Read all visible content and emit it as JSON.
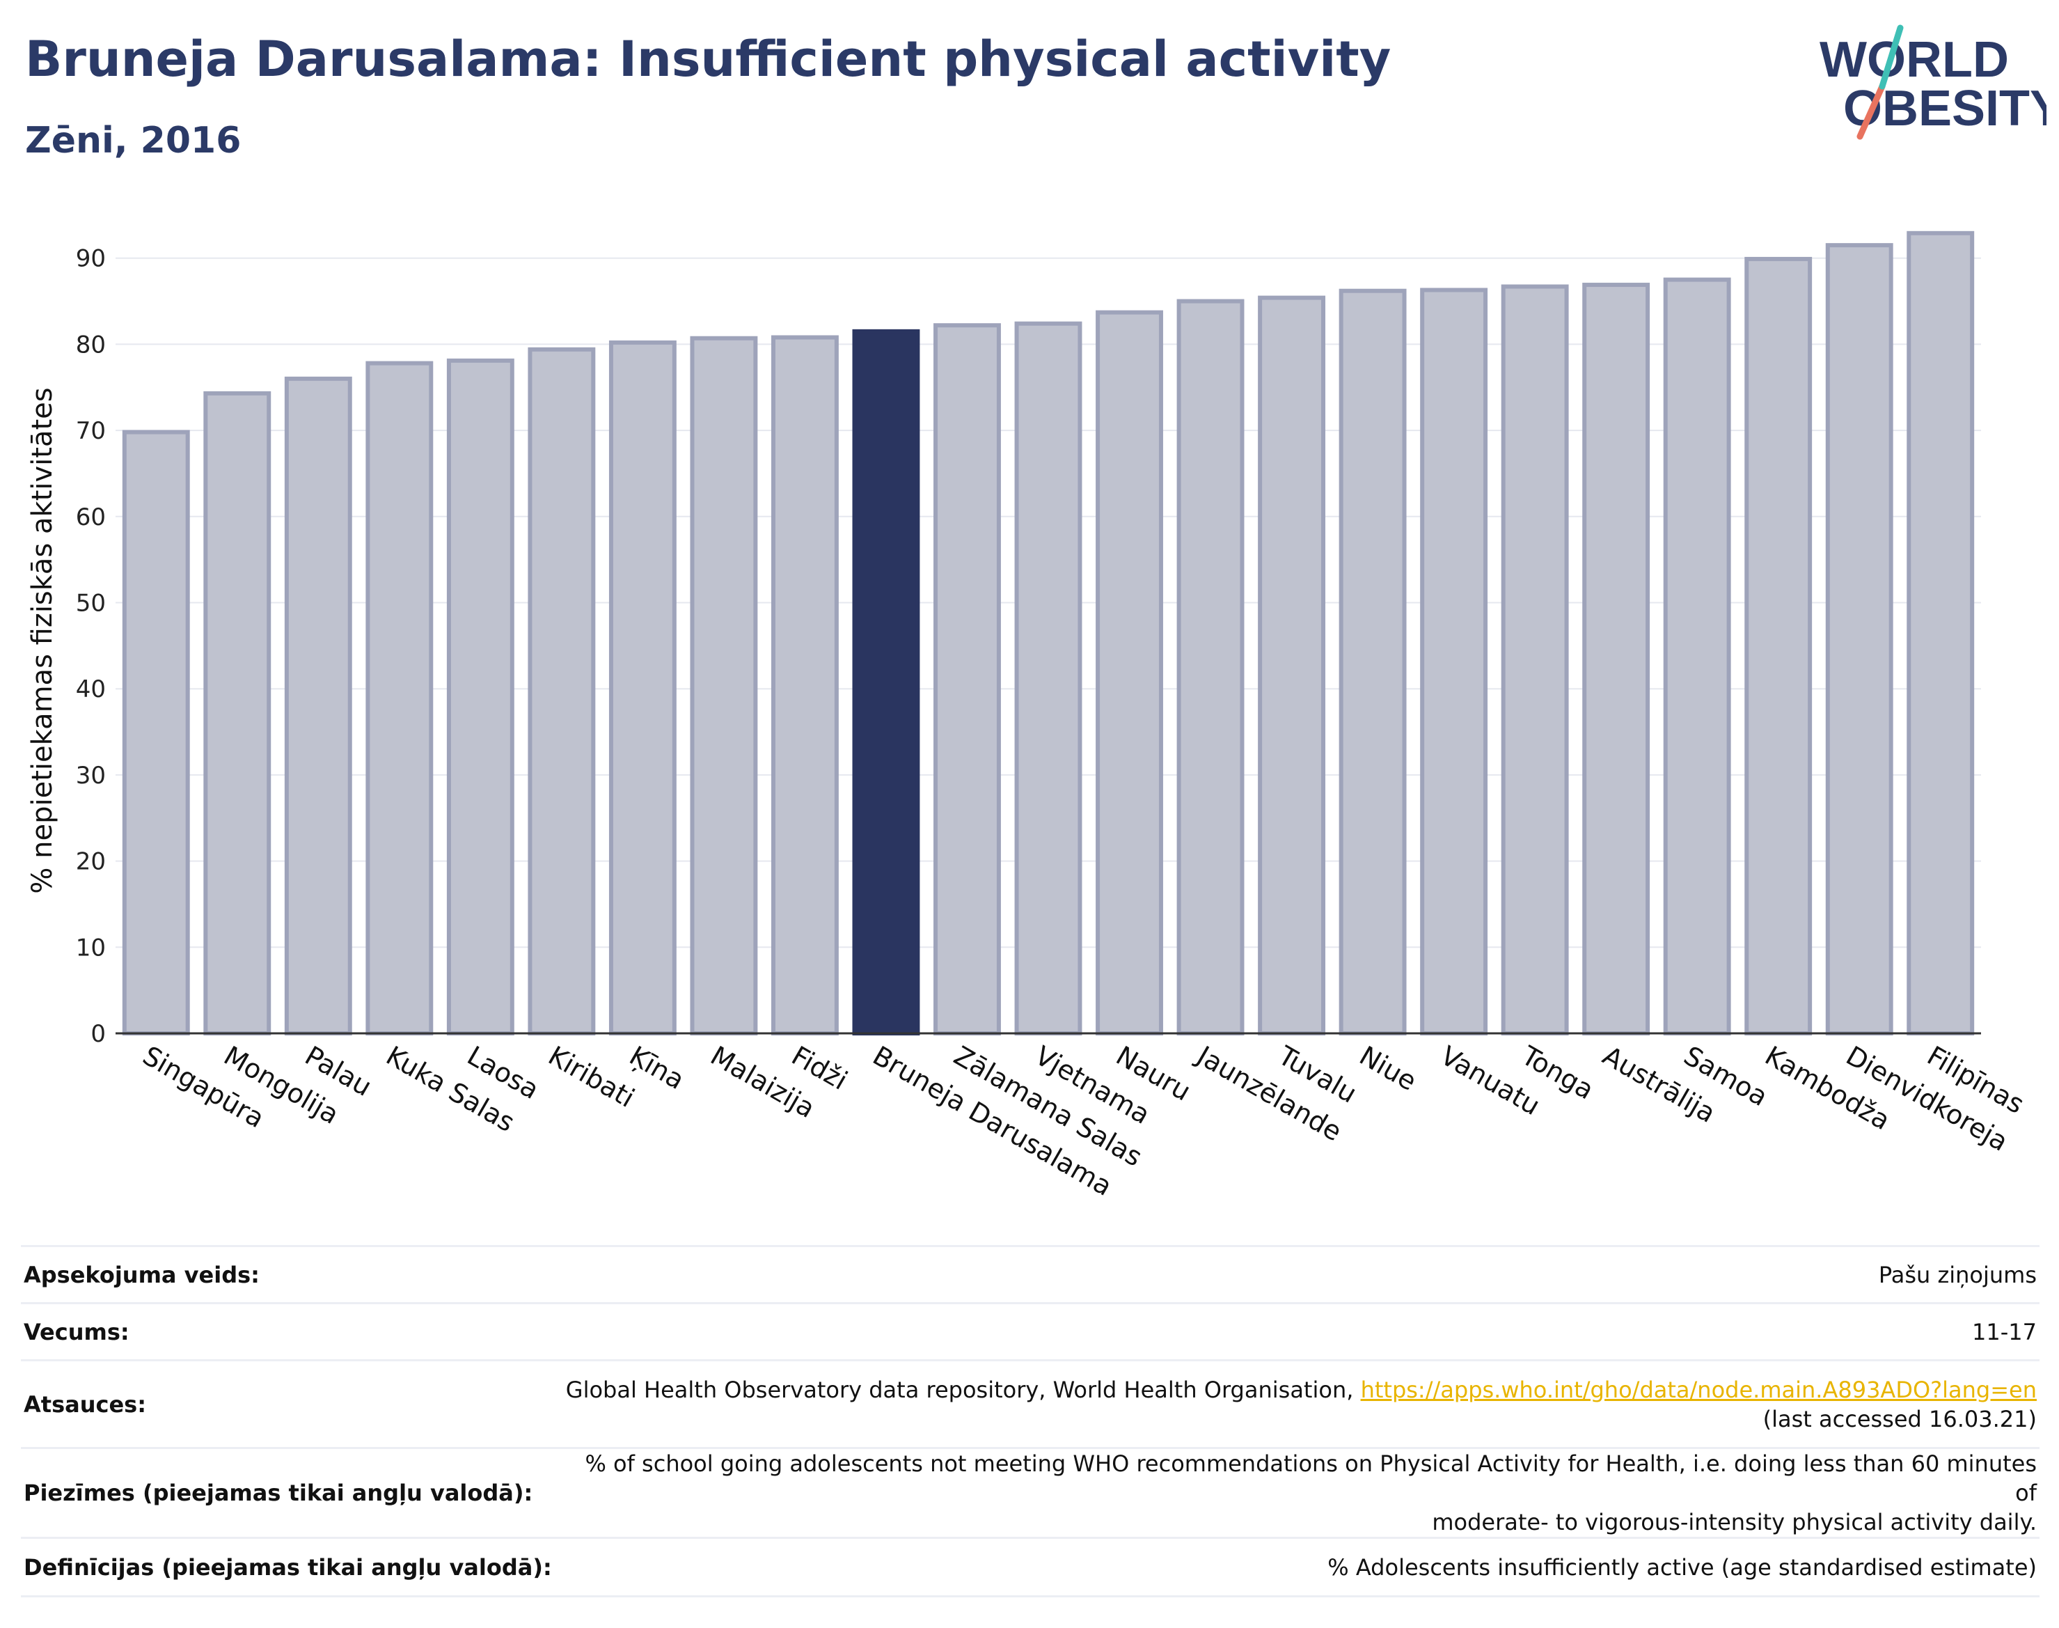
{
  "header": {
    "title": "Bruneja Darusalama: Insufficient physical activity",
    "subtitle": "Zēni, 2016"
  },
  "logo": {
    "line1": "WORLD",
    "line2": "OBESITY"
  },
  "colors": {
    "bar": "#bfc2cf",
    "bar_border": "#9ea3ba",
    "highlight": "#2a3560",
    "title": "#2b3a67",
    "link": "#e8b400"
  },
  "chart_data": {
    "type": "bar",
    "title": "",
    "xlabel": "",
    "ylabel": "% nepietiekamas fiziskās aktivitātes",
    "ylim": [
      0,
      95
    ],
    "yticks": [
      0,
      10,
      20,
      30,
      40,
      50,
      60,
      70,
      80,
      90
    ],
    "grid": true,
    "highlight": "Bruneja Darusalama",
    "categories": [
      "Singapūra",
      "Mongolija",
      "Palau",
      "Kuka Salas",
      "Laosa",
      "Kiribati",
      "Ķīna",
      "Malaizija",
      "Fidži",
      "Bruneja Darusalama",
      "Zālamana Salas",
      "Vjetnama",
      "Nauru",
      "Jaunzēlande",
      "Tuvalu",
      "Niue",
      "Vanuatu",
      "Tonga",
      "Austrālija",
      "Samoa",
      "Kambodža",
      "Dienvidkoreja",
      "Filipīnas"
    ],
    "values": [
      69.8,
      74.3,
      76.0,
      77.8,
      78.1,
      79.4,
      80.2,
      80.7,
      80.8,
      81.5,
      82.2,
      82.4,
      83.7,
      85.0,
      85.4,
      86.2,
      86.3,
      86.7,
      86.9,
      87.5,
      89.9,
      91.5,
      92.9
    ]
  },
  "meta": {
    "survey_label": "Apsekojuma veids:",
    "survey_value": "Pašu ziņojums",
    "age_label": "Vecums:",
    "age_value": "11-17",
    "refs_label": "Atsauces:",
    "refs_text": "Global Health Observatory data repository, World Health Organisation, ",
    "refs_link": "https://apps.who.int/gho/data/node.main.A893ADO?lang=en",
    "refs_accessed": "(last accessed 16.03.21)",
    "notes_label": "Piezīmes (pieejamas tikai angļu valodā):",
    "notes_line1": "% of school going adolescents not meeting WHO recommendations on Physical Activity for Health, i.e. doing less than 60 minutes of",
    "notes_line2": "moderate- to vigorous-intensity physical activity daily.",
    "defs_label": "Definīcijas (pieejamas tikai angļu valodā):",
    "defs_value": "% Adolescents insufficiently active (age standardised estimate)"
  }
}
